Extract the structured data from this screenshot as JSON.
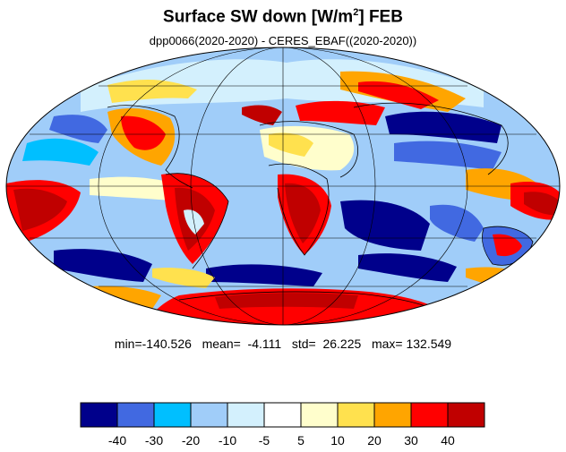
{
  "title": {
    "main": "Surface SW down [W/m",
    "superscript": "2",
    "suffix": "]  FEB"
  },
  "subtitle": "dpp0066(2020-2020) - CERES_EBAF((2020-2020))",
  "stats": {
    "text": "min=-140.526   mean=  -4.111   std=  26.225   max= 132.549",
    "min": -140.526,
    "mean": -4.111,
    "std": 26.225,
    "max": 132.549
  },
  "colorbar": {
    "colors": [
      "#00008b",
      "#4169e1",
      "#00bfff",
      "#a0cdf9",
      "#d3f0fd",
      "#ffffff",
      "#fffecc",
      "#ffe14e",
      "#ffa500",
      "#ff0000",
      "#c00000"
    ],
    "tick_labels": [
      "-40",
      "-30",
      "-20",
      "-10",
      "-5",
      "5",
      "10",
      "20",
      "30",
      "40"
    ]
  },
  "map": {
    "projection": "mollweide",
    "variable": "surface shortwave downward flux difference",
    "gridlines": true,
    "coastlines": true
  }
}
